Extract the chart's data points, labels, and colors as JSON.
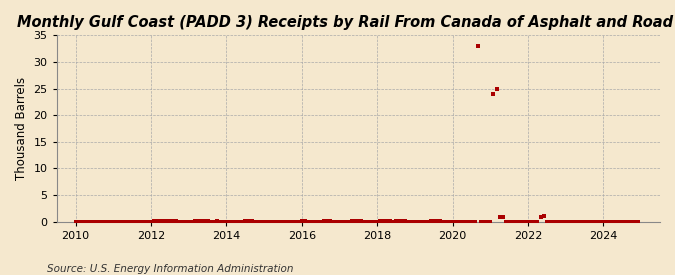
{
  "title": "Monthly Gulf Coast (PADD 3) Receipts by Rail From Canada of Asphalt and Road Oil",
  "ylabel": "Thousand Barrels",
  "source": "Source: U.S. Energy Information Administration",
  "background_color": "#f5e8ce",
  "plot_background_color": "#f5e8ce",
  "marker_color": "#aa0000",
  "xlim": [
    2009.5,
    2025.5
  ],
  "ylim": [
    0,
    35
  ],
  "yticks": [
    0,
    5,
    10,
    15,
    20,
    25,
    30,
    35
  ],
  "xticks": [
    2010,
    2012,
    2014,
    2016,
    2018,
    2020,
    2022,
    2024
  ],
  "title_fontsize": 10.5,
  "ylabel_fontsize": 8.5,
  "source_fontsize": 7.5,
  "data_points": [
    [
      2010.0,
      0.0
    ],
    [
      2010.083,
      0.0
    ],
    [
      2010.167,
      0.0
    ],
    [
      2010.25,
      0.0
    ],
    [
      2010.333,
      0.0
    ],
    [
      2010.417,
      0.0
    ],
    [
      2010.5,
      0.0
    ],
    [
      2010.583,
      0.0
    ],
    [
      2010.667,
      0.0
    ],
    [
      2010.75,
      0.0
    ],
    [
      2010.833,
      0.0
    ],
    [
      2010.917,
      0.0
    ],
    [
      2011.0,
      0.0
    ],
    [
      2011.083,
      0.0
    ],
    [
      2011.167,
      0.0
    ],
    [
      2011.25,
      0.0
    ],
    [
      2011.333,
      0.0
    ],
    [
      2011.417,
      0.0
    ],
    [
      2011.5,
      0.0
    ],
    [
      2011.583,
      0.0
    ],
    [
      2011.667,
      0.0
    ],
    [
      2011.75,
      0.0
    ],
    [
      2011.833,
      0.0
    ],
    [
      2011.917,
      0.0
    ],
    [
      2012.0,
      0.0
    ],
    [
      2012.083,
      0.15
    ],
    [
      2012.167,
      0.15
    ],
    [
      2012.25,
      0.15
    ],
    [
      2012.333,
      0.15
    ],
    [
      2012.417,
      0.15
    ],
    [
      2012.5,
      0.15
    ],
    [
      2012.583,
      0.15
    ],
    [
      2012.667,
      0.15
    ],
    [
      2012.75,
      0.0
    ],
    [
      2012.833,
      0.0
    ],
    [
      2012.917,
      0.0
    ],
    [
      2013.0,
      0.0
    ],
    [
      2013.083,
      0.0
    ],
    [
      2013.167,
      0.15
    ],
    [
      2013.25,
      0.15
    ],
    [
      2013.333,
      0.15
    ],
    [
      2013.417,
      0.15
    ],
    [
      2013.5,
      0.15
    ],
    [
      2013.583,
      0.0
    ],
    [
      2013.667,
      0.0
    ],
    [
      2013.75,
      0.15
    ],
    [
      2013.833,
      0.0
    ],
    [
      2013.917,
      0.0
    ],
    [
      2014.0,
      0.0
    ],
    [
      2014.083,
      0.0
    ],
    [
      2014.167,
      0.0
    ],
    [
      2014.25,
      0.0
    ],
    [
      2014.333,
      0.0
    ],
    [
      2014.417,
      0.0
    ],
    [
      2014.5,
      0.15
    ],
    [
      2014.583,
      0.15
    ],
    [
      2014.667,
      0.15
    ],
    [
      2014.75,
      0.0
    ],
    [
      2014.833,
      0.0
    ],
    [
      2014.917,
      0.0
    ],
    [
      2015.0,
      0.0
    ],
    [
      2015.083,
      0.0
    ],
    [
      2015.167,
      0.0
    ],
    [
      2015.25,
      0.0
    ],
    [
      2015.333,
      0.0
    ],
    [
      2015.417,
      0.0
    ],
    [
      2015.5,
      0.0
    ],
    [
      2015.583,
      0.0
    ],
    [
      2015.667,
      0.0
    ],
    [
      2015.75,
      0.0
    ],
    [
      2015.833,
      0.0
    ],
    [
      2015.917,
      0.0
    ],
    [
      2016.0,
      0.15
    ],
    [
      2016.083,
      0.15
    ],
    [
      2016.167,
      0.0
    ],
    [
      2016.25,
      0.0
    ],
    [
      2016.333,
      0.0
    ],
    [
      2016.417,
      0.0
    ],
    [
      2016.5,
      0.0
    ],
    [
      2016.583,
      0.15
    ],
    [
      2016.667,
      0.15
    ],
    [
      2016.75,
      0.15
    ],
    [
      2016.833,
      0.0
    ],
    [
      2016.917,
      0.0
    ],
    [
      2017.0,
      0.0
    ],
    [
      2017.083,
      0.0
    ],
    [
      2017.167,
      0.0
    ],
    [
      2017.25,
      0.0
    ],
    [
      2017.333,
      0.15
    ],
    [
      2017.417,
      0.15
    ],
    [
      2017.5,
      0.15
    ],
    [
      2017.583,
      0.15
    ],
    [
      2017.667,
      0.0
    ],
    [
      2017.75,
      0.0
    ],
    [
      2017.833,
      0.0
    ],
    [
      2017.917,
      0.0
    ],
    [
      2018.0,
      0.0
    ],
    [
      2018.083,
      0.15
    ],
    [
      2018.167,
      0.15
    ],
    [
      2018.25,
      0.15
    ],
    [
      2018.333,
      0.15
    ],
    [
      2018.417,
      0.0
    ],
    [
      2018.5,
      0.15
    ],
    [
      2018.583,
      0.15
    ],
    [
      2018.667,
      0.15
    ],
    [
      2018.75,
      0.15
    ],
    [
      2018.833,
      0.0
    ],
    [
      2018.917,
      0.0
    ],
    [
      2019.0,
      0.0
    ],
    [
      2019.083,
      0.0
    ],
    [
      2019.167,
      0.0
    ],
    [
      2019.25,
      0.0
    ],
    [
      2019.333,
      0.0
    ],
    [
      2019.417,
      0.15
    ],
    [
      2019.5,
      0.15
    ],
    [
      2019.583,
      0.15
    ],
    [
      2019.667,
      0.15
    ],
    [
      2019.75,
      0.0
    ],
    [
      2019.833,
      0.0
    ],
    [
      2019.917,
      0.0
    ],
    [
      2020.0,
      0.0
    ],
    [
      2020.083,
      0.0
    ],
    [
      2020.167,
      0.0
    ],
    [
      2020.25,
      0.0
    ],
    [
      2020.333,
      0.0
    ],
    [
      2020.417,
      0.0
    ],
    [
      2020.5,
      0.0
    ],
    [
      2020.583,
      0.0
    ],
    [
      2020.667,
      33.0
    ],
    [
      2020.75,
      0.0
    ],
    [
      2020.833,
      0.0
    ],
    [
      2020.917,
      0.0
    ],
    [
      2021.0,
      0.0
    ],
    [
      2021.083,
      24.0
    ],
    [
      2021.167,
      25.0
    ],
    [
      2021.25,
      0.8
    ],
    [
      2021.333,
      0.8
    ],
    [
      2021.417,
      0.0
    ],
    [
      2021.5,
      0.0
    ],
    [
      2021.583,
      0.0
    ],
    [
      2021.667,
      0.0
    ],
    [
      2021.75,
      0.0
    ],
    [
      2021.833,
      0.0
    ],
    [
      2021.917,
      0.0
    ],
    [
      2022.0,
      0.0
    ],
    [
      2022.083,
      0.0
    ],
    [
      2022.167,
      0.0
    ],
    [
      2022.25,
      0.0
    ],
    [
      2022.333,
      0.8
    ],
    [
      2022.417,
      1.0
    ],
    [
      2022.5,
      0.0
    ],
    [
      2022.583,
      0.0
    ],
    [
      2022.667,
      0.0
    ],
    [
      2022.75,
      0.0
    ],
    [
      2022.833,
      0.0
    ],
    [
      2022.917,
      0.0
    ],
    [
      2023.0,
      0.0
    ],
    [
      2023.083,
      0.0
    ],
    [
      2023.167,
      0.0
    ],
    [
      2023.25,
      0.0
    ],
    [
      2023.333,
      0.0
    ],
    [
      2023.417,
      0.0
    ],
    [
      2023.5,
      0.0
    ],
    [
      2023.583,
      0.0
    ],
    [
      2023.667,
      0.0
    ],
    [
      2023.75,
      0.0
    ],
    [
      2023.833,
      0.0
    ],
    [
      2023.917,
      0.0
    ],
    [
      2024.0,
      0.0
    ],
    [
      2024.083,
      0.0
    ],
    [
      2024.167,
      0.0
    ],
    [
      2024.25,
      0.0
    ],
    [
      2024.333,
      0.0
    ],
    [
      2024.417,
      0.0
    ],
    [
      2024.5,
      0.0
    ],
    [
      2024.583,
      0.0
    ],
    [
      2024.667,
      0.0
    ],
    [
      2024.75,
      0.0
    ],
    [
      2024.833,
      0.0
    ],
    [
      2024.917,
      0.0
    ]
  ]
}
